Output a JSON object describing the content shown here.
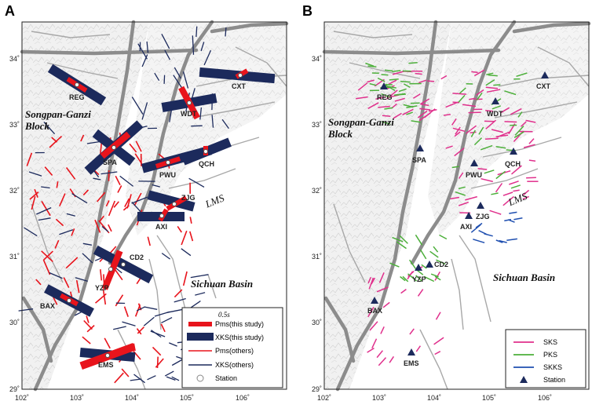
{
  "panels": [
    {
      "letter": "A",
      "x_ticks": [
        "102˚",
        "103˚",
        "104˚",
        "105˚",
        "106˚"
      ],
      "y_ticks": [
        "34˚",
        "33˚",
        "32˚",
        "31˚",
        "30˚",
        "29˚"
      ],
      "region_labels": [
        "Songpan-Ganzi",
        "Block",
        "LMS",
        "Sichuan Basin"
      ],
      "stations": [
        "REG",
        "WDT",
        "CXT",
        "SPA",
        "PWU",
        "QCH",
        "ZJG",
        "AXI",
        "CD2",
        "YZP",
        "BAX",
        "EMS"
      ],
      "legend": {
        "scale_label": "0.5s",
        "items": [
          "Pms(this study)",
          "XKS(this study)",
          "Pms(others)",
          "XKS(others)",
          "Station"
        ]
      }
    },
    {
      "letter": "B",
      "x_ticks": [
        "102˚",
        "103˚",
        "104˚",
        "105˚",
        "106˚"
      ],
      "y_ticks": [
        "34˚",
        "33˚",
        "32˚",
        "31˚",
        "30˚",
        "29˚"
      ],
      "region_labels": [
        "Songpan-Ganzi",
        "Block",
        "LMS",
        "Sichuan Basin"
      ],
      "stations": [
        "REG",
        "WDT",
        "CXT",
        "SPA",
        "PWU",
        "QCH",
        "ZJG",
        "AXI",
        "CD2",
        "YZP",
        "BAX",
        "EMS"
      ],
      "legend": {
        "items": [
          "SKS",
          "PKS",
          "SKKS",
          "Station"
        ]
      }
    }
  ],
  "colors": {
    "pms": "#e8141c",
    "xks": "#1c2a5c",
    "sks": "#e0308c",
    "pks": "#4caf3a",
    "skks": "#1f4fb0",
    "fault": "#9a9a9a",
    "major_fault": "#8c8c8c",
    "terrain": "#e6e6e6"
  }
}
